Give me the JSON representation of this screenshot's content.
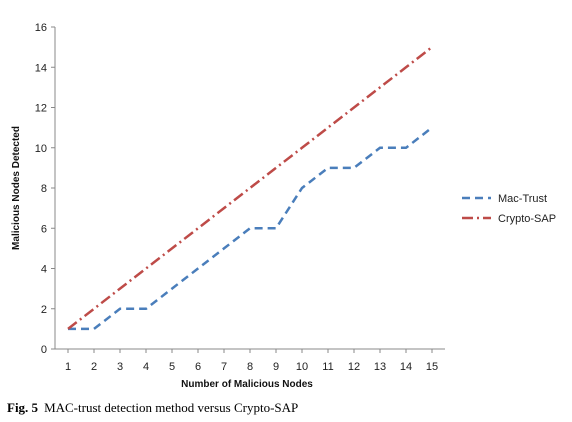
{
  "chart_data": {
    "type": "line",
    "xlabel": "Number of Malicious Nodes",
    "ylabel": "Malicious Nodes Detected",
    "x": [
      1,
      2,
      3,
      4,
      5,
      6,
      7,
      8,
      9,
      10,
      11,
      12,
      13,
      14,
      15
    ],
    "xlim": [
      1,
      15
    ],
    "ylim": [
      0,
      16
    ],
    "yticks": [
      0,
      2,
      4,
      6,
      8,
      10,
      12,
      14,
      16
    ],
    "grid": false,
    "legend": "right",
    "series": [
      {
        "name": "Mac-Trust",
        "color": "#4a7ebb",
        "dash": "dashed",
        "values": [
          1,
          1,
          2,
          2,
          3,
          4,
          5,
          6,
          6,
          8,
          9,
          9,
          10,
          10,
          11
        ]
      },
      {
        "name": "Crypto-SAP",
        "color": "#be4b48",
        "dash": "dash-dot",
        "values": [
          1,
          2,
          3,
          4,
          5,
          6,
          7,
          8,
          9,
          10,
          11,
          12,
          13,
          14,
          15
        ]
      }
    ]
  },
  "caption": {
    "label": "Fig. 5",
    "text": "MAC-trust detection method versus Crypto-SAP"
  }
}
